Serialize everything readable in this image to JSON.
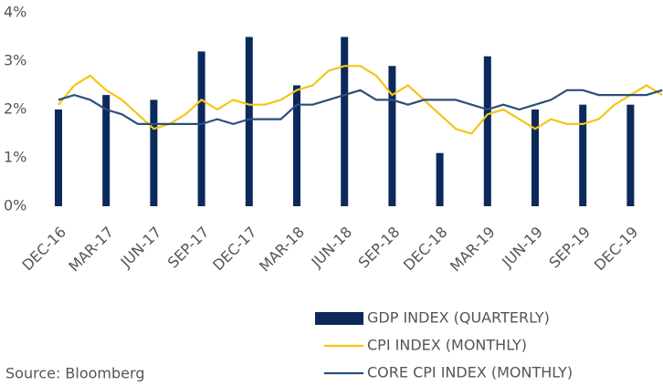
{
  "chart_data": {
    "type": "bar",
    "source": "Source: Bloomberg",
    "categories": [
      "DEC-16",
      null,
      null,
      "MAR-17",
      null,
      null,
      "JUN-17",
      null,
      null,
      "SEP-17",
      null,
      null,
      "DEC-17",
      null,
      null,
      "MAR-18",
      null,
      null,
      "JUN-18",
      null,
      null,
      "SEP-18",
      null,
      null,
      "DEC-18",
      null,
      null,
      "MAR-19",
      null,
      null,
      "JUN-19",
      null,
      null,
      "SEP-19",
      null,
      null,
      "DEC-19",
      null,
      null
    ],
    "series": [
      {
        "name": "GDP INDEX (QUARTERLY)",
        "type": "bar",
        "color": "#0b2a5b",
        "values": [
          2.0,
          null,
          null,
          2.3,
          null,
          null,
          2.2,
          null,
          null,
          3.2,
          null,
          null,
          3.5,
          null,
          null,
          2.5,
          null,
          null,
          3.5,
          null,
          null,
          2.9,
          null,
          null,
          1.1,
          null,
          null,
          3.1,
          null,
          null,
          2.0,
          null,
          null,
          2.1,
          null,
          null,
          2.1,
          null,
          null
        ]
      },
      {
        "name": "CPI INDEX (MONTHLY)",
        "type": "line",
        "color": "#f5c518",
        "values": [
          2.1,
          2.5,
          2.7,
          2.4,
          2.2,
          1.9,
          1.6,
          1.7,
          1.9,
          2.2,
          2.0,
          2.2,
          2.1,
          2.1,
          2.2,
          2.4,
          2.5,
          2.8,
          2.9,
          2.9,
          2.7,
          2.3,
          2.5,
          2.2,
          1.9,
          1.6,
          1.5,
          1.9,
          2.0,
          1.8,
          1.6,
          1.8,
          1.7,
          1.7,
          1.8,
          2.1,
          2.3,
          2.5,
          2.3
        ]
      },
      {
        "name": "CORE CPI INDEX (MONTHLY)",
        "type": "line",
        "color": "#2b4f7a",
        "values": [
          2.2,
          2.3,
          2.2,
          2.0,
          1.9,
          1.7,
          1.7,
          1.7,
          1.7,
          1.7,
          1.8,
          1.7,
          1.8,
          1.8,
          1.8,
          2.1,
          2.1,
          2.2,
          2.3,
          2.4,
          2.2,
          2.2,
          2.1,
          2.2,
          2.2,
          2.2,
          2.1,
          2.0,
          2.1,
          2.0,
          2.1,
          2.2,
          2.4,
          2.4,
          2.3,
          2.3,
          2.3,
          2.3,
          2.4
        ]
      }
    ],
    "ylim": [
      0,
      4
    ],
    "yticks": [
      {
        "value": 0,
        "label": "0%"
      },
      {
        "value": 1,
        "label": "1%"
      },
      {
        "value": 2,
        "label": "2%"
      },
      {
        "value": 3,
        "label": "3%"
      },
      {
        "value": 4,
        "label": "4%"
      }
    ],
    "grid": false,
    "legend": "bottom-right"
  }
}
